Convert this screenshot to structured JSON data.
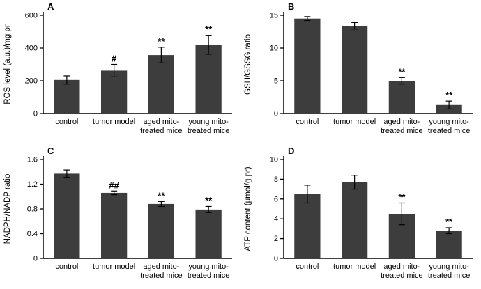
{
  "figure": {
    "background": "#ffffff",
    "bar_color": "#3d3d3d",
    "axis_color": "#000000",
    "text_color": "#000000"
  },
  "chart_data": [
    {
      "type": "bar",
      "panel_label": "A",
      "title": "",
      "xlabel": "",
      "ylabel": "ROS level (a.u.)/mg pr",
      "ylim": [
        0,
        600
      ],
      "yticks": [
        0,
        200,
        400,
        600
      ],
      "ytick_labels": [
        "0",
        "200",
        "400",
        "600"
      ],
      "grid": false,
      "legend": null,
      "categories": [
        [
          "control"
        ],
        [
          "tumor model"
        ],
        [
          "aged mito-",
          "treated mice"
        ],
        [
          "young mito-",
          "treated mice"
        ]
      ],
      "values": [
        205,
        262,
        357,
        420
      ],
      "errors": [
        25,
        38,
        48,
        58
      ],
      "annotations": [
        "",
        "#",
        "**",
        "**"
      ]
    },
    {
      "type": "bar",
      "panel_label": "B",
      "title": "",
      "xlabel": "",
      "ylabel": "GSH/GSSG ratio",
      "ylim": [
        0,
        15
      ],
      "yticks": [
        0,
        5,
        10,
        15
      ],
      "ytick_labels": [
        "0",
        "5",
        "10",
        "15"
      ],
      "grid": false,
      "legend": null,
      "categories": [
        [
          "control"
        ],
        [
          "tumor model"
        ],
        [
          "aged mito-",
          "treated mice"
        ],
        [
          "young mito-",
          "treated mice"
        ]
      ],
      "values": [
        14.5,
        13.4,
        5.0,
        1.3
      ],
      "errors": [
        0.3,
        0.5,
        0.5,
        0.6
      ],
      "annotations": [
        "",
        "",
        "**",
        "**"
      ]
    },
    {
      "type": "bar",
      "panel_label": "C",
      "title": "",
      "xlabel": "",
      "ylabel": "NADPH/NADP ratio",
      "ylim": [
        0,
        1.6
      ],
      "yticks": [
        0,
        0.4,
        0.8,
        1.2,
        1.6
      ],
      "ytick_labels": [
        "0",
        "0.4",
        "0.8",
        "1.2",
        "1.6"
      ],
      "grid": false,
      "legend": null,
      "categories": [
        [
          "control"
        ],
        [
          "tumor model"
        ],
        [
          "aged mito-",
          "treated mice"
        ],
        [
          "young mito-",
          "treated mice"
        ]
      ],
      "values": [
        1.37,
        1.06,
        0.88,
        0.79
      ],
      "errors": [
        0.06,
        0.03,
        0.04,
        0.05
      ],
      "annotations": [
        "",
        "##",
        "**",
        "**"
      ]
    },
    {
      "type": "bar",
      "panel_label": "D",
      "title": "",
      "xlabel": "",
      "ylabel": "ATP content (μmol/g pr)",
      "ylim": [
        0,
        10
      ],
      "yticks": [
        0,
        2,
        4,
        6,
        8,
        10
      ],
      "ytick_labels": [
        "0",
        "2",
        "4",
        "6",
        "8",
        "10"
      ],
      "grid": false,
      "legend": null,
      "categories": [
        [
          "control"
        ],
        [
          "tumor model"
        ],
        [
          "aged mito-",
          "treated mice"
        ],
        [
          "young mito-",
          "treated mice"
        ]
      ],
      "values": [
        6.5,
        7.7,
        4.5,
        2.8
      ],
      "errors": [
        0.9,
        0.7,
        1.1,
        0.3
      ],
      "annotations": [
        "",
        "",
        "**",
        "**"
      ]
    }
  ]
}
